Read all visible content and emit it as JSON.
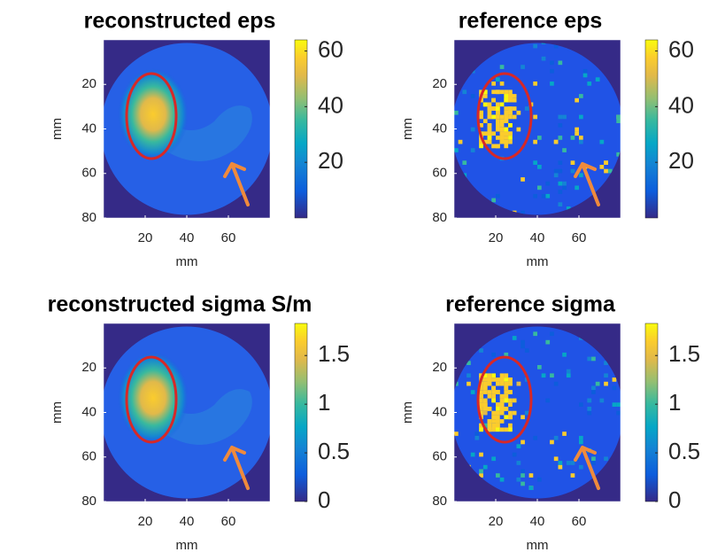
{
  "chart_data": [
    {
      "type": "image",
      "title": "reconstructed eps",
      "xlabel": "mm",
      "ylabel": "mm",
      "xlim": [
        0,
        80
      ],
      "ylim": [
        80,
        0
      ],
      "xticks": [
        20,
        40,
        60
      ],
      "yticks": [
        20,
        40,
        60,
        80
      ],
      "clim": [
        0,
        64
      ],
      "cticks": [
        20,
        40,
        60
      ]
    },
    {
      "type": "image",
      "title": "reference eps",
      "xlabel": "mm",
      "ylabel": "mm",
      "xlim": [
        0,
        80
      ],
      "ylim": [
        80,
        0
      ],
      "xticks": [
        20,
        40,
        60
      ],
      "yticks": [
        20,
        40,
        60,
        80
      ],
      "clim": [
        0,
        64
      ],
      "cticks": [
        20,
        40,
        60
      ]
    },
    {
      "type": "image",
      "title": "reconstructed sigma S/m",
      "xlabel": "mm",
      "ylabel": "mm",
      "xlim": [
        0,
        80
      ],
      "ylim": [
        80,
        0
      ],
      "xticks": [
        20,
        40,
        60
      ],
      "yticks": [
        20,
        40,
        60,
        80
      ],
      "clim": [
        0,
        1.83
      ],
      "cticks": [
        0,
        0.5,
        1,
        1.5
      ]
    },
    {
      "type": "image",
      "title": "reference sigma",
      "xlabel": "mm",
      "ylabel": "mm",
      "xlim": [
        0,
        80
      ],
      "ylim": [
        80,
        0
      ],
      "xticks": [
        20,
        40,
        60
      ],
      "yticks": [
        20,
        40,
        60,
        80
      ],
      "clim": [
        0,
        1.83
      ],
      "cticks": [
        0,
        0.5,
        1,
        1.5
      ]
    }
  ]
}
